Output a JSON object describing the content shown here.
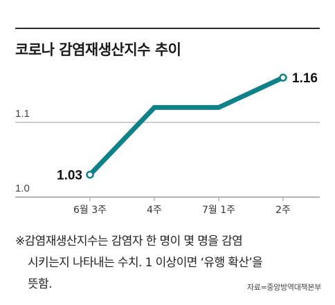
{
  "title": "코로나 감염재생산지수 추이",
  "chart_data": {
    "type": "line",
    "categories": [
      "6월 3주",
      "4주",
      "7월 1주",
      "2주"
    ],
    "values": [
      1.03,
      1.12,
      1.12,
      1.16
    ],
    "ylim": [
      1.0,
      1.2
    ],
    "yticks": [
      1.0,
      1.1
    ],
    "ytick_labels": [
      "1.0",
      "1.1"
    ],
    "data_labels": [
      {
        "index": 0,
        "text": "1.03"
      },
      {
        "index": 3,
        "text": "1.16"
      }
    ],
    "grid": true,
    "line_color": "#0f8289",
    "grid_color": "#9a9a9a"
  },
  "note": {
    "line1": "※감염재생산지수는 감염자 한 명이 몇 명을 감염",
    "line2": "시키는지 나타내는 수치. 1 이상이면 ‘유행 확산’을",
    "line3": "뜻함."
  },
  "source": "자료=중앙방역대책본부"
}
